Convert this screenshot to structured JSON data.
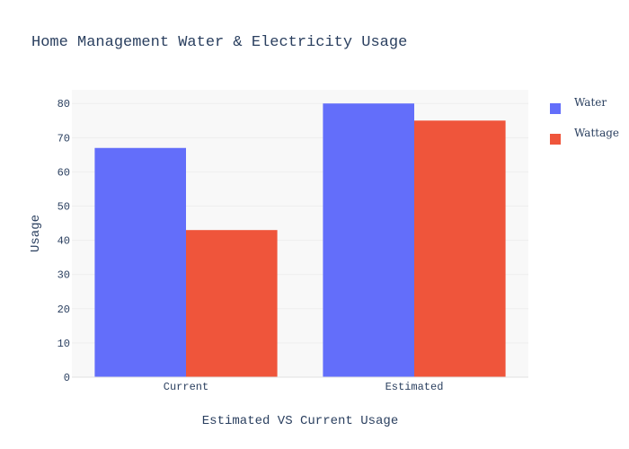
{
  "chart_data": {
    "type": "bar",
    "title": "Home Management Water & Electricity Usage",
    "xlabel": "Estimated VS Current Usage",
    "ylabel": "Usage",
    "categories": [
      "Current",
      "Estimated"
    ],
    "series": [
      {
        "name": "Water",
        "values": [
          67,
          80
        ],
        "color": "#636efa"
      },
      {
        "name": "Wattage",
        "values": [
          43,
          75
        ],
        "color": "#ef553b"
      }
    ],
    "ylim": [
      0,
      84
    ],
    "yticks": [
      0,
      10,
      20,
      30,
      40,
      50,
      60,
      70,
      80
    ],
    "grid": true,
    "legend_position": "top-right",
    "plot_background": "#f8f8f8",
    "grid_color": "#eeeeee",
    "text_color": "#2a3f5f"
  }
}
